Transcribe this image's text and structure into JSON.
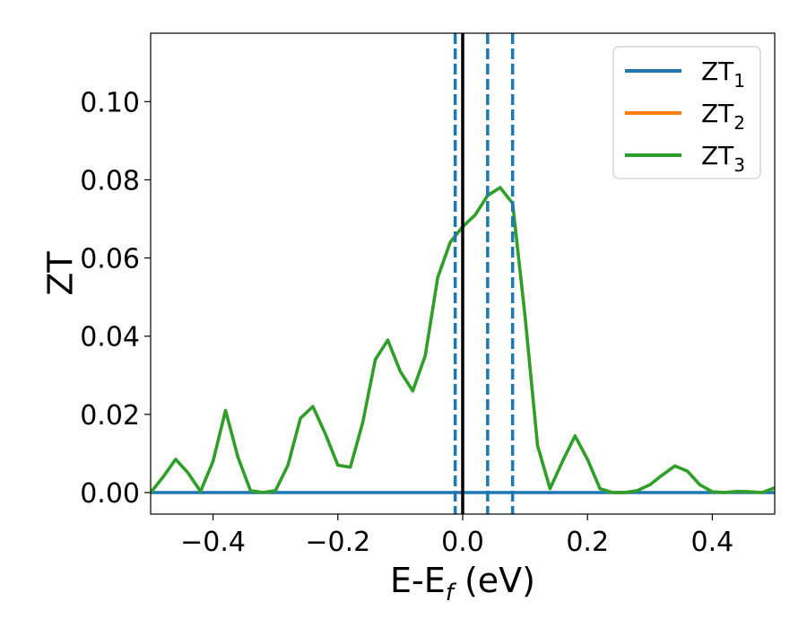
{
  "chart_data": {
    "type": "line",
    "xlabel": "E-E",
    "xlabel_sub": "f",
    "xlabel_unit": " (eV)",
    "ylabel": "ZT",
    "xlim": [
      -0.5,
      0.5
    ],
    "ylim": [
      -0.0055,
      0.1175
    ],
    "xticks": [
      {
        "value": -0.4,
        "label": "−0.4"
      },
      {
        "value": -0.2,
        "label": "−0.2"
      },
      {
        "value": 0.0,
        "label": "0.0"
      },
      {
        "value": 0.2,
        "label": "0.2"
      },
      {
        "value": 0.4,
        "label": "0.4"
      }
    ],
    "yticks": [
      {
        "value": 0.0,
        "label": "0.00"
      },
      {
        "value": 0.02,
        "label": "0.02"
      },
      {
        "value": 0.04,
        "label": "0.04"
      },
      {
        "value": 0.06,
        "label": "0.06"
      },
      {
        "value": 0.08,
        "label": "0.08"
      },
      {
        "value": 0.1,
        "label": "0.10"
      }
    ],
    "grid": false,
    "legend_position": "upper right",
    "vertical_lines": [
      {
        "x": 0.0,
        "style": "solid",
        "color": "#000000"
      },
      {
        "x": -0.012,
        "style": "dashed",
        "color": "#1f77b4"
      },
      {
        "x": 0.04,
        "style": "dashed",
        "color": "#1f77b4"
      },
      {
        "x": 0.08,
        "style": "dashed",
        "color": "#1f77b4"
      }
    ],
    "series": [
      {
        "name": "ZT",
        "name_sub": "1",
        "color": "#1f77b4",
        "x": [
          -0.5,
          -0.4,
          -0.3,
          -0.2,
          -0.1,
          0.0,
          0.1,
          0.2,
          0.3,
          0.4,
          0.5
        ],
        "y": [
          0.0,
          0.0,
          0.0,
          0.0,
          0.0,
          0.0,
          0.0,
          0.0,
          0.0,
          0.0,
          0.0
        ]
      },
      {
        "name": "ZT",
        "name_sub": "2",
        "color": "#ff7f0e",
        "x": [
          -0.5,
          -0.48,
          -0.46,
          -0.44,
          -0.42,
          -0.4,
          -0.38,
          -0.36,
          -0.34,
          -0.32,
          -0.3,
          -0.28,
          -0.26,
          -0.24,
          -0.22,
          -0.2,
          -0.18,
          -0.16,
          -0.14,
          -0.12,
          -0.1,
          -0.08,
          -0.06,
          -0.04,
          -0.02,
          0.0,
          0.02,
          0.04,
          0.06,
          0.08,
          0.1,
          0.12,
          0.14,
          0.16,
          0.18,
          0.2,
          0.22,
          0.24,
          0.26,
          0.28,
          0.3,
          0.32,
          0.34,
          0.36,
          0.38,
          0.4,
          0.42,
          0.44,
          0.46,
          0.48,
          0.5
        ],
        "y": [
          0.0,
          0.004,
          0.0085,
          0.005,
          0.0003,
          0.008,
          0.021,
          0.009,
          0.0005,
          0.0,
          0.0005,
          0.007,
          0.019,
          0.022,
          0.015,
          0.007,
          0.0065,
          0.018,
          0.034,
          0.039,
          0.031,
          0.026,
          0.035,
          0.055,
          0.064,
          0.068,
          0.071,
          0.076,
          0.078,
          0.074,
          0.045,
          0.012,
          0.001,
          0.008,
          0.0145,
          0.0085,
          0.001,
          0.0,
          0.0,
          0.0005,
          0.002,
          0.0045,
          0.0068,
          0.0055,
          0.002,
          0.0002,
          0.0,
          0.0003,
          0.0002,
          0.0,
          0.0012
        ]
      },
      {
        "name": "ZT",
        "name_sub": "3",
        "color": "#2ca02c",
        "x": [
          -0.5,
          -0.48,
          -0.46,
          -0.44,
          -0.42,
          -0.4,
          -0.38,
          -0.36,
          -0.34,
          -0.32,
          -0.3,
          -0.28,
          -0.26,
          -0.24,
          -0.22,
          -0.2,
          -0.18,
          -0.16,
          -0.14,
          -0.12,
          -0.1,
          -0.08,
          -0.06,
          -0.04,
          -0.02,
          0.0,
          0.02,
          0.04,
          0.06,
          0.08,
          0.1,
          0.12,
          0.14,
          0.16,
          0.18,
          0.2,
          0.22,
          0.24,
          0.26,
          0.28,
          0.3,
          0.32,
          0.34,
          0.36,
          0.38,
          0.4,
          0.42,
          0.44,
          0.46,
          0.48,
          0.5
        ],
        "y": [
          0.0,
          0.004,
          0.0085,
          0.005,
          0.0003,
          0.008,
          0.021,
          0.009,
          0.0005,
          0.0,
          0.0005,
          0.007,
          0.019,
          0.022,
          0.015,
          0.007,
          0.0065,
          0.018,
          0.034,
          0.039,
          0.031,
          0.026,
          0.035,
          0.055,
          0.064,
          0.068,
          0.071,
          0.076,
          0.078,
          0.074,
          0.045,
          0.012,
          0.001,
          0.008,
          0.0145,
          0.0085,
          0.001,
          0.0,
          0.0,
          0.0005,
          0.002,
          0.0045,
          0.0068,
          0.0055,
          0.002,
          0.0002,
          0.0,
          0.0003,
          0.0002,
          0.0,
          0.0012
        ]
      }
    ]
  }
}
